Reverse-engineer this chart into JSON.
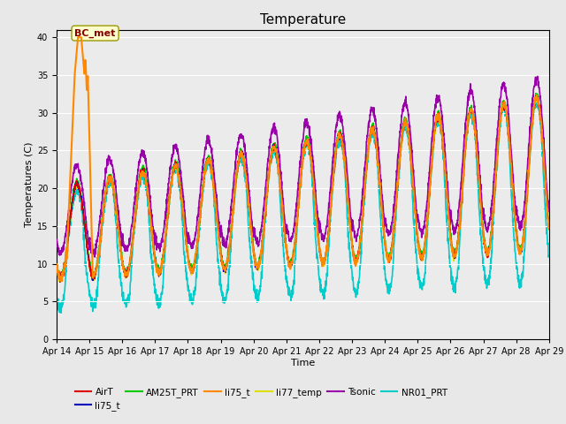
{
  "title": "Temperature",
  "xlabel": "Time",
  "ylabel": "Temperatures (C)",
  "ylim": [
    0,
    41
  ],
  "yticks": [
    0,
    5,
    10,
    15,
    20,
    25,
    30,
    35,
    40
  ],
  "bg_color": "#e8e8e8",
  "plot_bg_color": "#ebebeb",
  "annotation_text": "BC_met",
  "series": {
    "AirT": {
      "color": "#dd0000",
      "lw": 1.0
    },
    "li75_t_b": {
      "color": "#0000bb",
      "lw": 1.0
    },
    "AM25T_PRT": {
      "color": "#00cc00",
      "lw": 1.2
    },
    "li75_t_o": {
      "color": "#ff8800",
      "lw": 1.5
    },
    "li77_temp": {
      "color": "#dddd00",
      "lw": 1.2
    },
    "Tsonic": {
      "color": "#9900aa",
      "lw": 1.2
    },
    "NR01_PRT": {
      "color": "#00cccc",
      "lw": 1.2
    }
  },
  "legend_entries": [
    "AirT",
    "li75_t",
    "AM25T_PRT",
    "li75_t",
    "li77_temp",
    "Tsonic",
    "NR01_PRT"
  ],
  "legend_colors": [
    "#dd0000",
    "#0000bb",
    "#00cc00",
    "#ff8800",
    "#dddd00",
    "#9900aa",
    "#00cccc"
  ],
  "xtick_labels": [
    "Apr 14",
    "Apr 15",
    "Apr 16",
    "Apr 17",
    "Apr 18",
    "Apr 19",
    "Apr 20",
    "Apr 21",
    "Apr 22",
    "Apr 23",
    "Apr 24",
    "Apr 25",
    "Apr 26",
    "Apr 27",
    "Apr 28",
    "Apr 29"
  ],
  "n_days": 16
}
